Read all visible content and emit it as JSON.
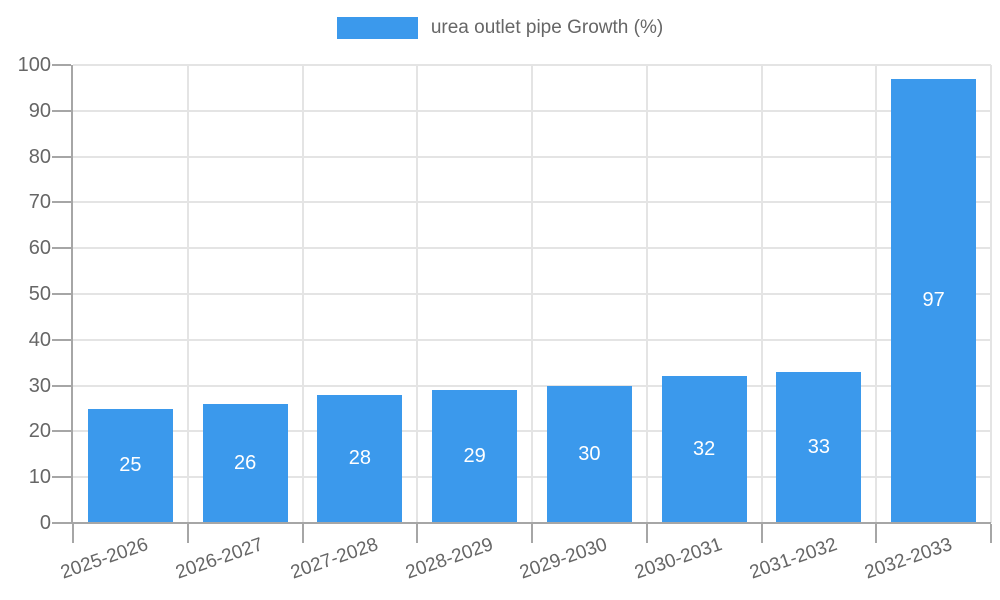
{
  "chart_data": {
    "type": "bar",
    "title": "",
    "series_name": "urea outlet pipe Growth (%)",
    "categories": [
      "2025-2026",
      "2026-2027",
      "2027-2028",
      "2028-2029",
      "2029-2030",
      "2030-2031",
      "2031-2032",
      "2032-2033"
    ],
    "values": [
      25,
      26,
      28,
      29,
      30,
      32,
      33,
      97
    ],
    "xlabel": "",
    "ylabel": "",
    "ylim": [
      0,
      100
    ],
    "ytick_step": 10,
    "y_tick_labels": [
      "0",
      "10",
      "20",
      "30",
      "40",
      "50",
      "60",
      "70",
      "80",
      "90",
      "100"
    ],
    "grid": true,
    "legend_position": "top",
    "bar_color": "#3b99ec",
    "grid_color": "#e4e4e4",
    "axis_color": "#a6a6a6",
    "text_color": "#666666",
    "value_label_color": "#ffffff"
  }
}
